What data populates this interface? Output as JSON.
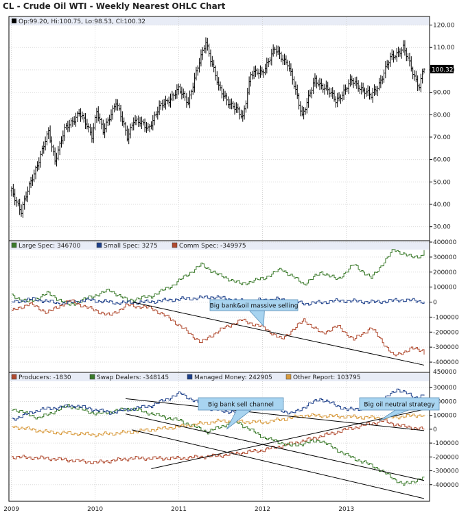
{
  "title": "CL - Crude Oil WTI - Weekly Nearest OHLC Chart",
  "x_tick_labels": [
    "2009",
    "2010",
    "2011",
    "2012",
    "2013"
  ],
  "chart_data": [
    {
      "type": "ohlc",
      "title": "CL - Crude Oil WTI - Weekly Nearest OHLC Chart",
      "legend": "Op:99.20, Hi:100.75, Lo:98.53, Cl:100.32",
      "last": {
        "open": 99.2,
        "high": 100.75,
        "low": 98.53,
        "close": 100.32
      },
      "last_label": "100.32",
      "ylim": [
        25,
        122
      ],
      "y_ticks": [
        30,
        40,
        50,
        60,
        70,
        80,
        90,
        100,
        110,
        120
      ],
      "y_tick_labels": [
        "30.00",
        "40.00",
        "50.00",
        "60.00",
        "70.00",
        "80.00",
        "90.00",
        "100.00",
        "110.00",
        "120.00"
      ],
      "x_start": "2009-01-02",
      "x_end": "2013-12-06",
      "close_anchors": [
        [
          "2009-01-02",
          46
        ],
        [
          "2009-02-13",
          37
        ],
        [
          "2009-03-27",
          50
        ],
        [
          "2009-06-12",
          72
        ],
        [
          "2009-07-10",
          60
        ],
        [
          "2009-08-21",
          73
        ],
        [
          "2009-10-23",
          81
        ],
        [
          "2009-12-18",
          71
        ],
        [
          "2010-01-08",
          82
        ],
        [
          "2010-02-05",
          72
        ],
        [
          "2010-04-02",
          86
        ],
        [
          "2010-05-21",
          70
        ],
        [
          "2010-06-18",
          78
        ],
        [
          "2010-08-20",
          74
        ],
        [
          "2010-10-08",
          83
        ],
        [
          "2010-12-31",
          91
        ],
        [
          "2011-02-11",
          86
        ],
        [
          "2011-04-29",
          113
        ],
        [
          "2011-06-24",
          92
        ],
        [
          "2011-08-12",
          85
        ],
        [
          "2011-10-07",
          79
        ],
        [
          "2011-11-11",
          98
        ],
        [
          "2011-12-30",
          99
        ],
        [
          "2012-02-24",
          109
        ],
        [
          "2012-04-20",
          103
        ],
        [
          "2012-06-22",
          80
        ],
        [
          "2012-08-17",
          95
        ],
        [
          "2012-10-05",
          92
        ],
        [
          "2012-11-16",
          86
        ],
        [
          "2013-01-25",
          95
        ],
        [
          "2013-02-22",
          93
        ],
        [
          "2013-04-19",
          88
        ],
        [
          "2013-05-24",
          94
        ],
        [
          "2013-07-12",
          105
        ],
        [
          "2013-09-06",
          110
        ],
        [
          "2013-10-25",
          97
        ],
        [
          "2013-11-15",
          93
        ],
        [
          "2013-12-06",
          100.32
        ]
      ]
    },
    {
      "type": "step-line",
      "legend": [
        {
          "name": "Large Spec",
          "label": "Large Spec: 346700",
          "last": 346700,
          "color": "#3a7a2a"
        },
        {
          "name": "Small Spec",
          "label": "Small Spec: 3275",
          "last": 3275,
          "color": "#1c3f8a"
        },
        {
          "name": "Comm Spec",
          "label": "Comm Spec: -349975",
          "last": -349975,
          "color": "#b04a2f"
        }
      ],
      "ylim": [
        -450000,
        400000
      ],
      "y_ticks": [
        -400000,
        -300000,
        -200000,
        -100000,
        0,
        100000,
        200000,
        300000,
        400000
      ],
      "y_tick_labels": [
        "-400000",
        "-300000",
        "-200000",
        "-100000",
        "0",
        "100000",
        "200000",
        "300000",
        "400000"
      ],
      "series": [
        {
          "name": "Large Spec",
          "color": "#3a7a2a",
          "anchors": [
            [
              "2009-01-02",
              40000
            ],
            [
              "2009-03-20",
              0
            ],
            [
              "2009-06-05",
              60000
            ],
            [
              "2009-09-11",
              -20000
            ],
            [
              "2009-12-04",
              30000
            ],
            [
              "2010-03-05",
              80000
            ],
            [
              "2010-05-21",
              10000
            ],
            [
              "2010-09-03",
              40000
            ],
            [
              "2010-12-03",
              110000
            ],
            [
              "2011-04-08",
              250000
            ],
            [
              "2011-06-24",
              180000
            ],
            [
              "2011-09-30",
              120000
            ],
            [
              "2012-01-06",
              160000
            ],
            [
              "2012-03-23",
              220000
            ],
            [
              "2012-06-29",
              120000
            ],
            [
              "2012-09-14",
              200000
            ],
            [
              "2012-11-23",
              150000
            ],
            [
              "2013-02-01",
              250000
            ],
            [
              "2013-04-19",
              160000
            ],
            [
              "2013-07-26",
              350000
            ],
            [
              "2013-10-11",
              300000
            ],
            [
              "2013-11-29",
              310000
            ],
            [
              "2013-12-06",
              346700
            ]
          ]
        },
        {
          "name": "Small Spec",
          "color": "#1c3f8a",
          "anchors": [
            [
              "2009-01-02",
              0
            ],
            [
              "2009-04-03",
              20000
            ],
            [
              "2009-08-07",
              -10000
            ],
            [
              "2009-12-04",
              15000
            ],
            [
              "2010-04-02",
              -5000
            ],
            [
              "2010-08-06",
              0
            ],
            [
              "2011-01-07",
              20000
            ],
            [
              "2011-06-03",
              35000
            ],
            [
              "2011-10-07",
              5000
            ],
            [
              "2012-03-02",
              20000
            ],
            [
              "2012-07-06",
              -10000
            ],
            [
              "2012-12-07",
              10000
            ],
            [
              "2013-05-03",
              0
            ],
            [
              "2013-09-06",
              15000
            ],
            [
              "2013-12-06",
              3275
            ]
          ]
        },
        {
          "name": "Comm Spec",
          "color": "#b04a2f",
          "anchors": [
            [
              "2009-01-02",
              -60000
            ],
            [
              "2009-03-20",
              -10000
            ],
            [
              "2009-06-05",
              -70000
            ],
            [
              "2009-09-11",
              10000
            ],
            [
              "2009-12-04",
              -40000
            ],
            [
              "2010-03-05",
              -90000
            ],
            [
              "2010-05-21",
              -20000
            ],
            [
              "2010-09-03",
              -40000
            ],
            [
              "2010-12-03",
              -120000
            ],
            [
              "2011-04-08",
              -270000
            ],
            [
              "2011-06-24",
              -190000
            ],
            [
              "2011-09-30",
              -120000
            ],
            [
              "2012-01-06",
              -170000
            ],
            [
              "2012-03-23",
              -250000
            ],
            [
              "2012-06-29",
              -120000
            ],
            [
              "2012-09-14",
              -210000
            ],
            [
              "2012-11-23",
              -160000
            ],
            [
              "2013-02-01",
              -250000
            ],
            [
              "2013-04-19",
              -170000
            ],
            [
              "2013-07-26",
              -360000
            ],
            [
              "2013-10-11",
              -310000
            ],
            [
              "2013-11-29",
              -320000
            ],
            [
              "2013-12-06",
              -349975
            ]
          ]
        }
      ],
      "trendlines": [
        [
          [
            "2010-06-11",
            0
          ],
          [
            "2013-12-06",
            -420000
          ]
        ]
      ],
      "annotations": [
        {
          "text": "Big bank&oil massive selling",
          "at": "2011-11-18",
          "pointer_x": "2012-01-06",
          "pointer_y": -160000
        }
      ]
    },
    {
      "type": "step-line",
      "legend": [
        {
          "name": "Producers",
          "label": "Producers: -1830",
          "last": -1830,
          "color": "#b04a2f"
        },
        {
          "name": "Swap Dealers",
          "label": "Swap Dealers: -348145",
          "last": -348145,
          "color": "#3a7a2a"
        },
        {
          "name": "Managed Money",
          "label": "Managed Money: 242905",
          "last": 242905,
          "color": "#1c3f8a"
        },
        {
          "name": "Other Report",
          "label": "Other Report: 103795",
          "last": 103795,
          "color": "#d89a3c"
        }
      ],
      "ylim": [
        -500000,
        400000
      ],
      "y_ticks": [
        -400000,
        -300000,
        -200000,
        -100000,
        0,
        100000,
        200000,
        300000
      ],
      "y_tick_labels": [
        "-400000",
        "-300000",
        "-200000",
        "-100000",
        "0",
        "100000",
        "200000",
        "300000"
      ],
      "top_label": "450000",
      "series": [
        {
          "name": "Producers",
          "color": "#b04a2f",
          "anchors": [
            [
              "2009-01-02",
              -200000
            ],
            [
              "2009-06-05",
              -210000
            ],
            [
              "2010-01-08",
              -240000
            ],
            [
              "2010-06-04",
              -210000
            ],
            [
              "2011-01-07",
              -210000
            ],
            [
              "2011-07-01",
              -190000
            ],
            [
              "2012-01-06",
              -150000
            ],
            [
              "2012-07-06",
              -80000
            ],
            [
              "2013-01-04",
              0
            ],
            [
              "2013-06-07",
              60000
            ],
            [
              "2013-09-06",
              20000
            ],
            [
              "2013-12-06",
              -1830
            ]
          ]
        },
        {
          "name": "Swap Dealers",
          "color": "#3a7a2a",
          "anchors": [
            [
              "2009-01-02",
              150000
            ],
            [
              "2009-05-01",
              80000
            ],
            [
              "2009-09-04",
              170000
            ],
            [
              "2010-01-08",
              110000
            ],
            [
              "2010-06-04",
              150000
            ],
            [
              "2011-01-07",
              60000
            ],
            [
              "2011-05-06",
              -20000
            ],
            [
              "2011-09-02",
              60000
            ],
            [
              "2012-01-06",
              -60000
            ],
            [
              "2012-05-04",
              -120000
            ],
            [
              "2012-09-07",
              -80000
            ],
            [
              "2013-01-04",
              -190000
            ],
            [
              "2013-05-03",
              -270000
            ],
            [
              "2013-09-06",
              -400000
            ],
            [
              "2013-12-06",
              -348145
            ]
          ]
        },
        {
          "name": "Managed Money",
          "color": "#1c3f8a",
          "anchors": [
            [
              "2009-01-02",
              70000
            ],
            [
              "2009-05-01",
              140000
            ],
            [
              "2009-10-02",
              170000
            ],
            [
              "2010-03-05",
              120000
            ],
            [
              "2010-09-03",
              170000
            ],
            [
              "2011-01-07",
              260000
            ],
            [
              "2011-05-06",
              150000
            ],
            [
              "2011-09-02",
              120000
            ],
            [
              "2012-01-06",
              190000
            ],
            [
              "2012-05-04",
              110000
            ],
            [
              "2012-09-07",
              220000
            ],
            [
              "2013-01-04",
              140000
            ],
            [
              "2013-05-03",
              160000
            ],
            [
              "2013-08-09",
              290000
            ],
            [
              "2013-10-25",
              230000
            ],
            [
              "2013-12-06",
              242905
            ]
          ]
        },
        {
          "name": "Other Report",
          "color": "#d89a3c",
          "anchors": [
            [
              "2009-01-02",
              20000
            ],
            [
              "2009-06-05",
              -20000
            ],
            [
              "2010-01-08",
              -40000
            ],
            [
              "2010-06-04",
              -20000
            ],
            [
              "2011-01-07",
              20000
            ],
            [
              "2011-07-01",
              60000
            ],
            [
              "2012-01-06",
              50000
            ],
            [
              "2012-07-06",
              100000
            ],
            [
              "2013-01-04",
              90000
            ],
            [
              "2013-06-07",
              80000
            ],
            [
              "2013-12-06",
              103795
            ]
          ]
        }
      ],
      "trendlines": [
        [
          [
            "2010-05-14",
            220000
          ],
          [
            "2013-12-06",
            -10000
          ]
        ],
        [
          [
            "2010-05-14",
            110000
          ],
          [
            "2013-12-06",
            -370000
          ]
        ],
        [
          [
            "2010-06-11",
            -5000
          ],
          [
            "2013-12-06",
            -500000
          ]
        ],
        [
          [
            "2010-09-03",
            -285000
          ],
          [
            "2013-11-29",
            140000
          ]
        ]
      ],
      "annotations": [
        {
          "text": "Big bank sell channel",
          "at": "2011-09-09",
          "pointer_x": "2011-07-29",
          "pointer_y": 0
        },
        {
          "text": "Big oil neutral strategy",
          "at": "2013-07-12",
          "pointer_x": "2013-05-24",
          "pointer_y": 60000
        }
      ]
    }
  ]
}
